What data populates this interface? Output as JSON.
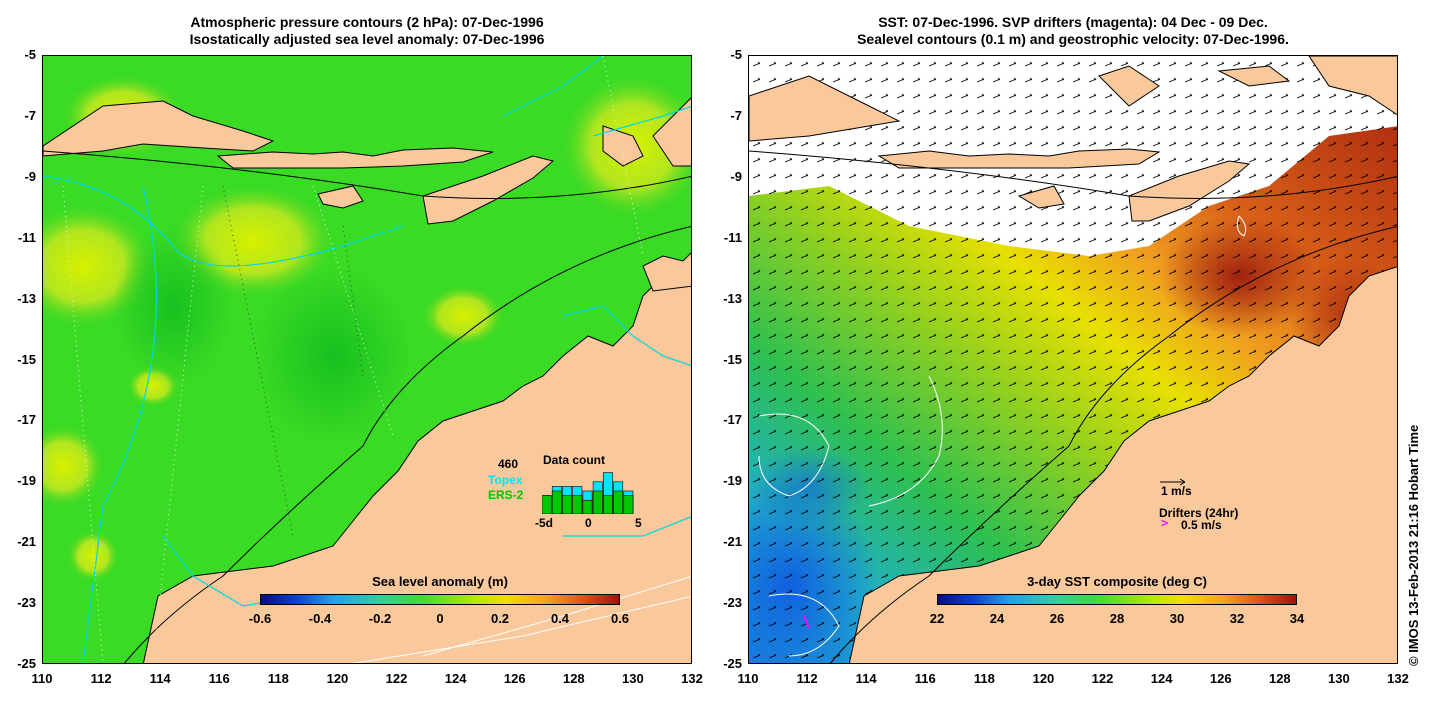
{
  "left_panel": {
    "title_line1": "Atmospheric pressure contours (2 hPa): 07-Dec-1996",
    "title_line2": "Isostatically adjusted sea level anomaly: 07-Dec-1996",
    "colorbar_title": "Sea level anomaly (m)",
    "colorbar_ticks": [
      "-0.6",
      "-0.4",
      "-0.2",
      "0",
      "0.2",
      "0.4",
      "0.6"
    ],
    "inset": {
      "count": "460",
      "title": "Data count",
      "series1": "Topex",
      "series2": "ERS-2",
      "series1_color": "#00e5ff",
      "series2_color": "#00c800",
      "x_ticks": [
        "-5d",
        "0",
        "5"
      ],
      "bars_topex": [
        4,
        6,
        6,
        6,
        5,
        7,
        9,
        7,
        5
      ],
      "bars_ers": [
        4,
        5,
        4,
        4,
        3,
        5,
        4,
        5,
        4
      ]
    }
  },
  "right_panel": {
    "title_line1": "SST: 07-Dec-1996. SVP drifters (magenta): 04 Dec - 09 Dec.",
    "title_line2": "Sealevel contours (0.1 m) and geostrophic velocity: 07-Dec-1996.",
    "colorbar_title": "3-day SST composite (deg C)",
    "colorbar_ticks": [
      "22",
      "24",
      "26",
      "28",
      "30",
      "32",
      "34"
    ],
    "velocity_scale_label": "1 m/s",
    "drifter_label": "Drifters (24hr)",
    "drifter_scale_label": "0.5 m/s",
    "drifter_color": "#ff00ff"
  },
  "axes": {
    "x_ticks": [
      "110",
      "112",
      "114",
      "116",
      "118",
      "120",
      "122",
      "124",
      "126",
      "128",
      "130",
      "132"
    ],
    "y_ticks": [
      "-5",
      "-7",
      "-9",
      "-11",
      "-13",
      "-15",
      "-17",
      "-19",
      "-21",
      "-23",
      "-25"
    ]
  },
  "colors": {
    "land": "#f9c89b",
    "sla_sea": "#33dd22",
    "sst_warm": "#d4601a"
  },
  "credit": "© IMOS 13-Feb-2013 21:16 Hobart Time"
}
